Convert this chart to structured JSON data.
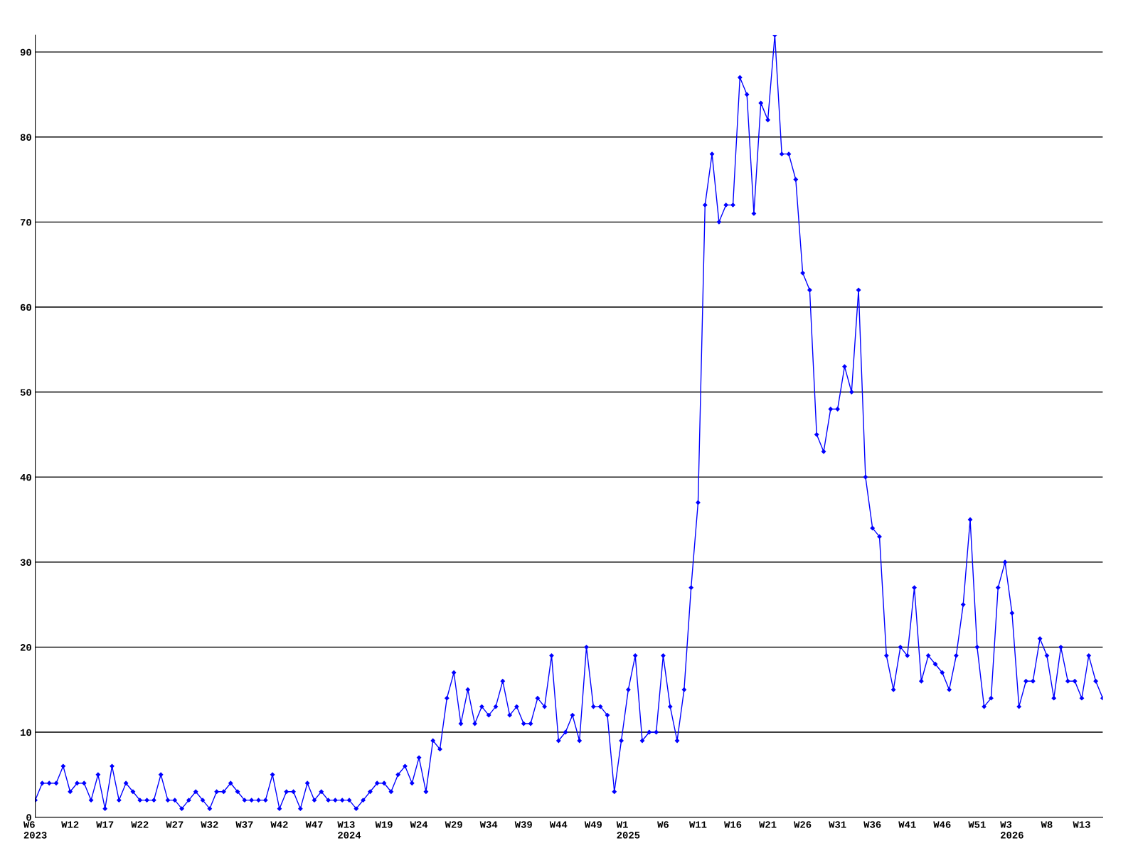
{
  "chart_data": {
    "type": "line",
    "categories": [
      "W6\n2023",
      null,
      null,
      null,
      null,
      "W12",
      null,
      null,
      null,
      null,
      "W17",
      null,
      null,
      null,
      null,
      "W22",
      null,
      null,
      null,
      null,
      "W27",
      null,
      null,
      null,
      null,
      "W32",
      null,
      null,
      null,
      null,
      "W37",
      null,
      null,
      null,
      null,
      "W42",
      null,
      null,
      null,
      null,
      "W47",
      null,
      null,
      null,
      null,
      "W13\n2024",
      null,
      null,
      null,
      null,
      "W19",
      null,
      null,
      null,
      null,
      "W24",
      null,
      null,
      null,
      null,
      "W29",
      null,
      null,
      null,
      null,
      "W34",
      null,
      null,
      null,
      null,
      "W39",
      null,
      null,
      null,
      null,
      "W44",
      null,
      null,
      null,
      null,
      "W49",
      null,
      null,
      null,
      null,
      "W1\n2025",
      null,
      null,
      null,
      null,
      "W6",
      null,
      null,
      null,
      null,
      "W11",
      null,
      null,
      null,
      null,
      "W16",
      null,
      null,
      null,
      null,
      "W21",
      null,
      null,
      null,
      null,
      "W26",
      null,
      null,
      null,
      null,
      "W31",
      null,
      null,
      null,
      null,
      "W36",
      null,
      null,
      null,
      null,
      "W41",
      null,
      null,
      null,
      null,
      "W46",
      null,
      null,
      null,
      null,
      "W51",
      null,
      null,
      null,
      null,
      "W3\n2026",
      null,
      null,
      null,
      null,
      "W8",
      null,
      null,
      null,
      null,
      "W13",
      null,
      null,
      null
    ],
    "series": [
      {
        "color": "#0000ff",
        "values": [
          2,
          4,
          4,
          4,
          6,
          3,
          4,
          4,
          2,
          5,
          1,
          6,
          2,
          4,
          3,
          2,
          2,
          2,
          5,
          2,
          2,
          1,
          2,
          3,
          2,
          1,
          3,
          3,
          4,
          3,
          2,
          2,
          2,
          2,
          5,
          1,
          3,
          3,
          1,
          4,
          2,
          3,
          2,
          2,
          2,
          2,
          1,
          2,
          3,
          4,
          4,
          3,
          5,
          6,
          4,
          7,
          3,
          9,
          8,
          14,
          17,
          11,
          15,
          11,
          13,
          12,
          13,
          16,
          12,
          13,
          11,
          11,
          14,
          13,
          19,
          9,
          10,
          12,
          9,
          20,
          13,
          13,
          12,
          3,
          9,
          15,
          19,
          9,
          10,
          10,
          19,
          13,
          9,
          15,
          27,
          37,
          72,
          78,
          70,
          72,
          72,
          87,
          85,
          71,
          84,
          82,
          92,
          78,
          78,
          75,
          64,
          62,
          45,
          43,
          48,
          48,
          53,
          50,
          62,
          40,
          34,
          33,
          19,
          15,
          20,
          19,
          27,
          16,
          19,
          18,
          17,
          15,
          19,
          25,
          35,
          20,
          13,
          14,
          27,
          30,
          24,
          13,
          16,
          16,
          21,
          19,
          14,
          20,
          16,
          16,
          14,
          19,
          16,
          14
        ]
      }
    ],
    "ylim": [
      0,
      92
    ],
    "yticks": [
      0,
      10,
      20,
      30,
      40,
      50,
      60,
      70,
      80,
      90
    ],
    "grid": "y",
    "marker": "diamond",
    "line_style": "solid"
  }
}
